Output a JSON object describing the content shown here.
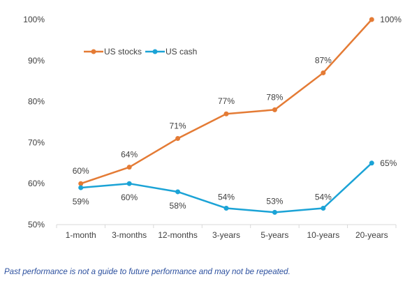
{
  "footnote": "Past performance is not a guide to future performance and may not be repeated.",
  "chart_data": {
    "type": "line",
    "categories": [
      "1-month",
      "3-months",
      "12-months",
      "3-years",
      "5-years",
      "10-years",
      "20-years"
    ],
    "series": [
      {
        "name": "US stocks",
        "color": "#e47b35",
        "values": [
          60,
          64,
          71,
          77,
          78,
          87,
          100
        ],
        "labels": [
          "60%",
          "64%",
          "71%",
          "77%",
          "78%",
          "87%",
          "100%"
        ]
      },
      {
        "name": "US cash",
        "color": "#1ba3d6",
        "values": [
          59,
          60,
          58,
          54,
          53,
          54,
          65
        ],
        "labels": [
          "59%",
          "60%",
          "58%",
          "54%",
          "53%",
          "54%",
          "65%"
        ]
      }
    ],
    "y_ticks": [
      "50%",
      "60%",
      "70%",
      "80%",
      "90%",
      "100%"
    ],
    "y_tick_values": [
      50,
      60,
      70,
      80,
      90,
      100
    ],
    "ylim": [
      50,
      100
    ],
    "grid": false,
    "legend_position": "top-left"
  }
}
